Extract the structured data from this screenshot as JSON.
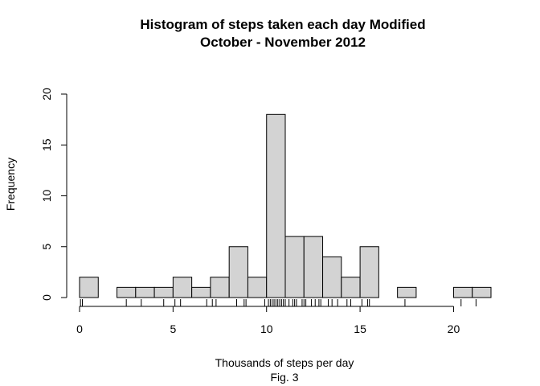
{
  "chart_data": {
    "type": "histogram",
    "title_line1": "Histogram of steps taken each day Modified",
    "title_line2": "October - November 2012",
    "xlabel": "Thousands of steps per day",
    "caption": "Fig. 3",
    "ylabel": "Frequency",
    "xlim": [
      0,
      22
    ],
    "ylim": [
      0,
      20
    ],
    "x_ticks": [
      "0",
      "5",
      "10",
      "15",
      "20"
    ],
    "y_ticks": [
      "0",
      "5",
      "10",
      "15",
      "20"
    ],
    "bin_width": 1,
    "bins": [
      {
        "start": 0,
        "end": 1,
        "count": 2
      },
      {
        "start": 1,
        "end": 2,
        "count": 0
      },
      {
        "start": 2,
        "end": 3,
        "count": 1
      },
      {
        "start": 3,
        "end": 4,
        "count": 1
      },
      {
        "start": 4,
        "end": 5,
        "count": 1
      },
      {
        "start": 5,
        "end": 6,
        "count": 2
      },
      {
        "start": 6,
        "end": 7,
        "count": 1
      },
      {
        "start": 7,
        "end": 8,
        "count": 2
      },
      {
        "start": 8,
        "end": 9,
        "count": 5
      },
      {
        "start": 9,
        "end": 10,
        "count": 2
      },
      {
        "start": 10,
        "end": 11,
        "count": 18
      },
      {
        "start": 11,
        "end": 12,
        "count": 6
      },
      {
        "start": 12,
        "end": 13,
        "count": 6
      },
      {
        "start": 13,
        "end": 14,
        "count": 4
      },
      {
        "start": 14,
        "end": 15,
        "count": 2
      },
      {
        "start": 15,
        "end": 16,
        "count": 5
      },
      {
        "start": 16,
        "end": 17,
        "count": 0
      },
      {
        "start": 17,
        "end": 18,
        "count": 1
      },
      {
        "start": 18,
        "end": 19,
        "count": 0
      },
      {
        "start": 19,
        "end": 20,
        "count": 0
      },
      {
        "start": 20,
        "end": 21,
        "count": 1
      },
      {
        "start": 21,
        "end": 22,
        "count": 1
      }
    ],
    "rug": [
      0.05,
      0.15,
      2.5,
      3.3,
      4.5,
      5.1,
      5.4,
      6.8,
      7.1,
      7.3,
      8.4,
      8.8,
      8.9,
      9.9,
      10.1,
      10.2,
      10.3,
      10.4,
      10.5,
      10.6,
      10.7,
      10.8,
      10.9,
      11.0,
      11.2,
      11.4,
      11.5,
      11.6,
      11.9,
      12.0,
      12.1,
      12.4,
      12.6,
      12.8,
      12.9,
      13.3,
      13.5,
      13.8,
      14.3,
      14.5,
      15.1,
      15.4,
      15.5,
      17.4,
      20.4,
      21.2
    ],
    "colors": {
      "bar_fill": "#d3d3d3",
      "bar_stroke": "#000000",
      "axis": "#000000"
    }
  }
}
